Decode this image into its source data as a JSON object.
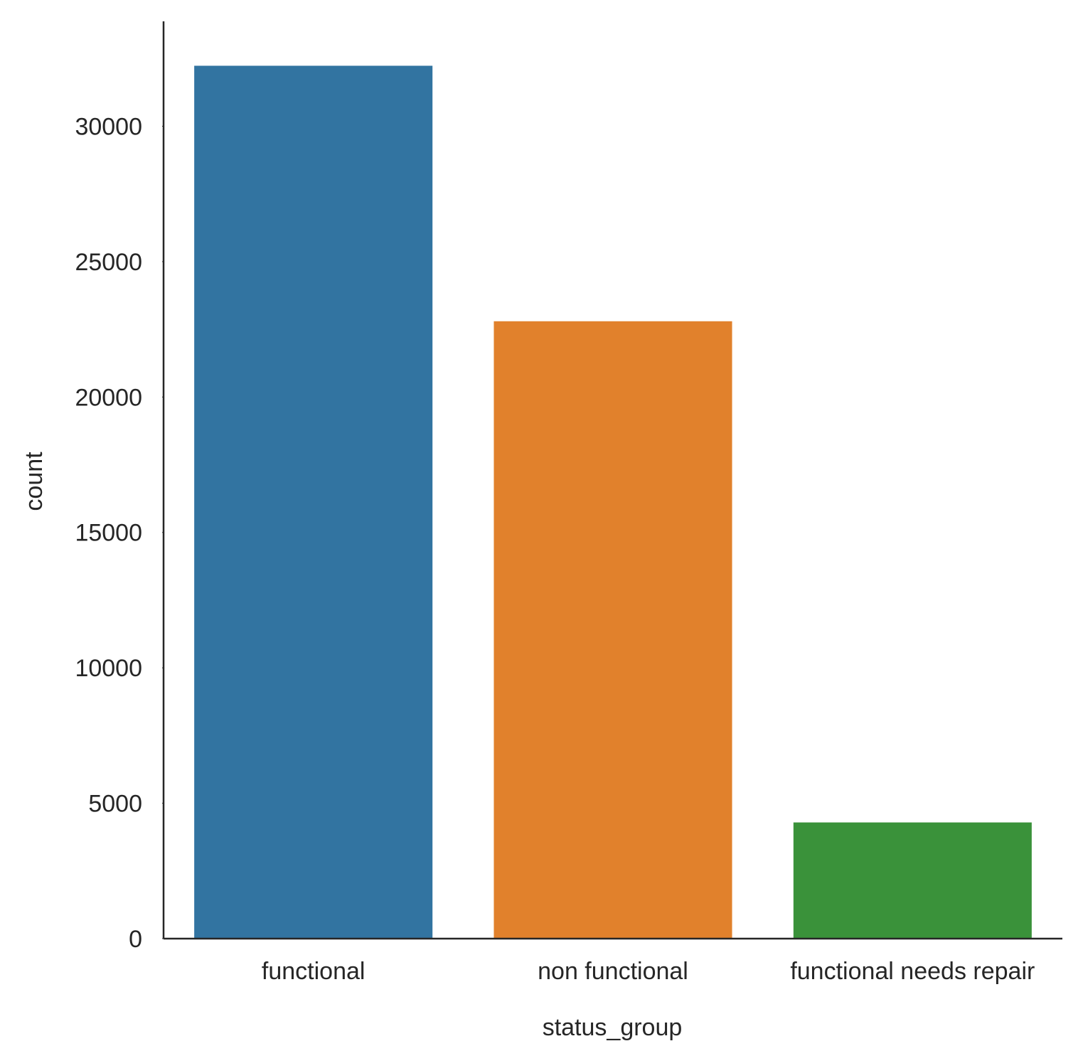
{
  "chart_data": {
    "type": "bar",
    "categories": [
      "functional",
      "non functional",
      "functional needs repair"
    ],
    "values": [
      32259,
      22824,
      4317
    ],
    "colors": [
      "#3274a1",
      "#e1812c",
      "#3a923a"
    ],
    "xlabel": "status_group",
    "ylabel": "count",
    "ylim": [
      0,
      33873
    ],
    "yticks": [
      0,
      5000,
      10000,
      15000,
      20000,
      25000,
      30000
    ],
    "ytick_labels": [
      "0",
      "5000",
      "10000",
      "15000",
      "20000",
      "25000",
      "30000"
    ],
    "grid": false,
    "spines": "left-bottom"
  }
}
